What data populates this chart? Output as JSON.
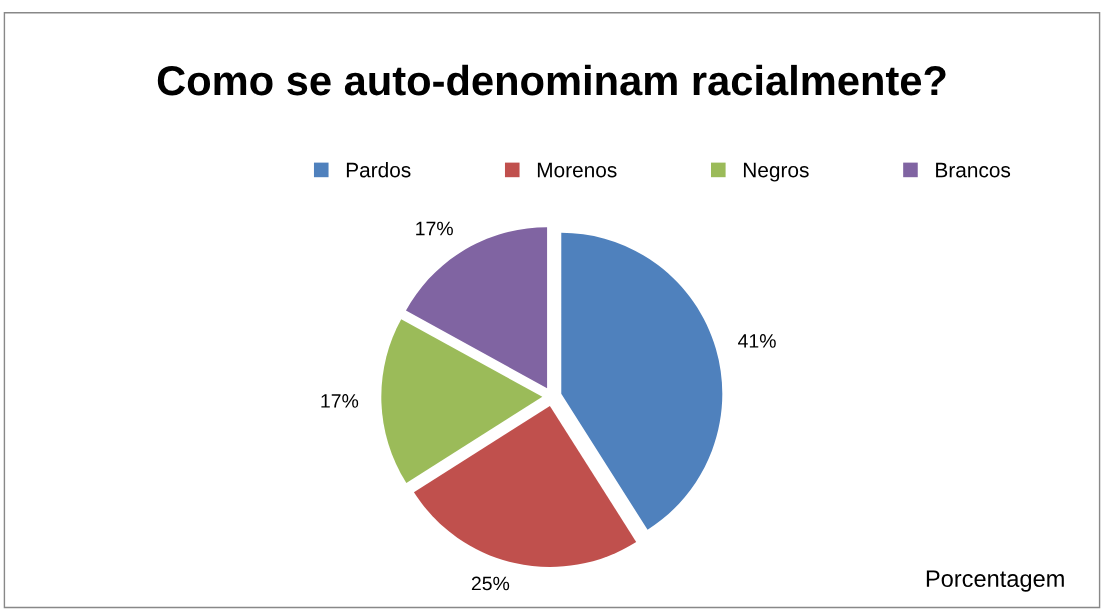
{
  "chart_data": {
    "type": "pie",
    "title": "Como se auto-denominam racialmente?",
    "categories": [
      "Pardos",
      "Morenos",
      "Negros",
      "Brancos"
    ],
    "values": [
      41,
      25,
      17,
      17
    ],
    "colors": [
      "#4f81bd",
      "#c0504d",
      "#9bbb59",
      "#8064a2"
    ],
    "value_labels": [
      "41%",
      "25%",
      "17%",
      "17%"
    ],
    "legend": "top",
    "annotations": [
      "Porcentagem"
    ]
  }
}
